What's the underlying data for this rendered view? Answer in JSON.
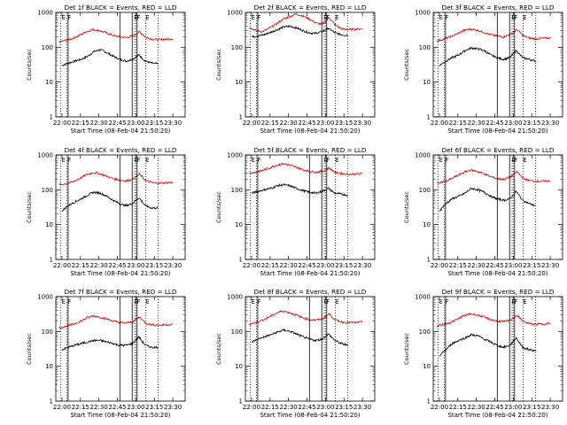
{
  "figure": {
    "ylabel": "Counts/sec",
    "xlabel": "Start Time (08-Feb-04 21:50:20)",
    "event_marks": [
      "E",
      "F",
      "E",
      "F",
      "E"
    ]
  },
  "colors": {
    "events": "#000000",
    "lld": "#e00000",
    "axes": "#000000"
  },
  "chart_data": [
    {
      "type": "line",
      "title": "Det 1f BLACK = Events, RED = LLD",
      "xlabel": "Start Time (08-Feb-04 21:50:20)",
      "ylabel": "Counts/sec",
      "x_ticks": [
        "22:00",
        "22:15",
        "22:30",
        "22:45",
        "23:00",
        "23:15",
        "23:30"
      ],
      "y_ticks": [
        "1",
        "10",
        "100",
        "1000"
      ],
      "ylim": [
        1,
        1000
      ],
      "log_y": true,
      "xlim_minutes": [
        -5,
        100
      ],
      "series": [
        {
          "name": "BLACK = Events",
          "x_start": "22:00",
          "x_end": "23:18",
          "values": [
            30,
            35,
            40,
            45,
            55,
            75,
            85,
            70,
            55,
            45,
            40,
            45,
            60,
            40,
            35,
            33
          ]
        },
        {
          "name": "RED = LLD",
          "x_start": "21:58",
          "x_end": "23:30",
          "values": [
            140,
            160,
            180,
            220,
            280,
            320,
            300,
            260,
            220,
            200,
            190,
            210,
            280,
            190,
            170,
            165,
            170,
            175
          ]
        }
      ],
      "vlines_solid": [
        "22:05",
        "22:47",
        "22:57",
        "23:01"
      ],
      "vlines_dotted": [
        "21:59",
        "22:04",
        "22:59",
        "23:00",
        "23:08",
        "23:18"
      ]
    },
    {
      "type": "line",
      "title": "Det 2f BLACK = Events, RED = LLD",
      "xlabel": "Start Time (08-Feb-04 21:50:20)",
      "ylabel": "Counts/sec",
      "x_ticks": [
        "22:00",
        "22:15",
        "22:30",
        "22:45",
        "23:00",
        "23:15",
        "23:30"
      ],
      "y_ticks": [
        "1",
        "10",
        "100",
        "1000"
      ],
      "ylim": [
        1,
        1000
      ],
      "log_y": true,
      "xlim_minutes": [
        -5,
        100
      ],
      "series": [
        {
          "name": "BLACK = Events",
          "x_start": "22:00",
          "x_end": "23:18",
          "values": [
            200,
            210,
            230,
            270,
            320,
            380,
            400,
            360,
            300,
            260,
            250,
            280,
            350,
            260,
            230,
            220
          ]
        },
        {
          "name": "RED = LLD",
          "x_start": "21:58",
          "x_end": "23:30",
          "values": [
            380,
            300,
            280,
            350,
            450,
            620,
            750,
            900,
            800,
            650,
            500,
            450,
            700,
            420,
            330,
            320,
            330,
            340
          ]
        }
      ],
      "vlines_solid": [
        "22:05",
        "22:57",
        "23:01"
      ],
      "vlines_dotted": [
        "21:59",
        "22:04",
        "22:59",
        "23:00",
        "23:08",
        "23:18"
      ]
    },
    {
      "type": "line",
      "title": "Det 3f BLACK = Events, RED = LLD",
      "xlabel": "Start Time (08-Feb-04 21:50:20)",
      "ylabel": "Counts/sec",
      "x_ticks": [
        "22:00",
        "22:15",
        "22:30",
        "22:45",
        "23:00",
        "23:15",
        "23:30"
      ],
      "y_ticks": [
        "1",
        "10",
        "100",
        "1000"
      ],
      "ylim": [
        1,
        1000
      ],
      "log_y": true,
      "xlim_minutes": [
        -5,
        100
      ],
      "series": [
        {
          "name": "BLACK = Events",
          "x_start": "22:00",
          "x_end": "23:18",
          "values": [
            30,
            40,
            50,
            60,
            80,
            95,
            90,
            80,
            60,
            50,
            45,
            50,
            80,
            50,
            45,
            40
          ]
        },
        {
          "name": "RED = LLD",
          "x_start": "21:58",
          "x_end": "23:30",
          "values": [
            150,
            170,
            200,
            240,
            300,
            330,
            310,
            270,
            230,
            210,
            200,
            230,
            320,
            210,
            180,
            175,
            180,
            185
          ]
        }
      ],
      "vlines_solid": [
        "22:05",
        "22:47",
        "22:57",
        "23:01"
      ],
      "vlines_dotted": [
        "21:59",
        "22:04",
        "22:59",
        "23:00",
        "23:08",
        "23:18"
      ]
    },
    {
      "type": "line",
      "title": "Det 4f BLACK = Events, RED = LLD",
      "xlabel": "Start Time (08-Feb-04 21:50:20)",
      "ylabel": "Counts/sec",
      "x_ticks": [
        "22:00",
        "22:15",
        "22:30",
        "22:45",
        "23:00",
        "23:15",
        "23:30"
      ],
      "y_ticks": [
        "1",
        "10",
        "100",
        "1000"
      ],
      "ylim": [
        1,
        1000
      ],
      "log_y": true,
      "xlim_minutes": [
        -5,
        100
      ],
      "series": [
        {
          "name": "BLACK = Events",
          "x_start": "22:00",
          "x_end": "23:18",
          "values": [
            25,
            35,
            45,
            55,
            70,
            85,
            80,
            65,
            50,
            40,
            35,
            40,
            60,
            35,
            30,
            30
          ]
        },
        {
          "name": "RED = LLD",
          "x_start": "21:58",
          "x_end": "23:30",
          "values": [
            140,
            150,
            170,
            210,
            270,
            310,
            290,
            250,
            210,
            190,
            180,
            200,
            280,
            180,
            160,
            155,
            160,
            165
          ]
        }
      ],
      "vlines_solid": [
        "22:05",
        "22:47",
        "22:57",
        "23:01"
      ],
      "vlines_dotted": [
        "21:59",
        "22:04",
        "22:59",
        "23:00",
        "23:08",
        "23:18"
      ]
    },
    {
      "type": "line",
      "title": "Det 5f BLACK = Events, RED = LLD",
      "xlabel": "Start Time (08-Feb-04 21:50:20)",
      "ylabel": "Counts/sec",
      "x_ticks": [
        "22:00",
        "22:15",
        "22:30",
        "22:45",
        "23:00",
        "23:15",
        "23:30"
      ],
      "y_ticks": [
        "1",
        "10",
        "100",
        "1000"
      ],
      "ylim": [
        1,
        1000
      ],
      "log_y": true,
      "xlim_minutes": [
        -5,
        100
      ],
      "series": [
        {
          "name": "BLACK = Events",
          "x_start": "22:00",
          "x_end": "23:18",
          "values": [
            80,
            90,
            100,
            110,
            130,
            140,
            130,
            110,
            95,
            85,
            80,
            90,
            110,
            80,
            75,
            70
          ]
        },
        {
          "name": "RED = LLD",
          "x_start": "21:58",
          "x_end": "23:30",
          "values": [
            300,
            320,
            360,
            420,
            500,
            560,
            520,
            450,
            380,
            340,
            320,
            340,
            420,
            310,
            290,
            280,
            285,
            290
          ]
        }
      ],
      "vlines_solid": [
        "22:05",
        "22:47",
        "22:57",
        "23:01"
      ],
      "vlines_dotted": [
        "21:59",
        "22:04",
        "22:59",
        "23:00",
        "23:08",
        "23:18"
      ]
    },
    {
      "type": "line",
      "title": "Det 6f BLACK = Events, RED = LLD",
      "xlabel": "Start Time (08-Feb-04 21:50:20)",
      "ylabel": "Counts/sec",
      "x_ticks": [
        "22:00",
        "22:15",
        "22:30",
        "22:45",
        "23:00",
        "23:15",
        "23:30"
      ],
      "y_ticks": [
        "1",
        "10",
        "100",
        "1000"
      ],
      "ylim": [
        1,
        1000
      ],
      "log_y": true,
      "xlim_minutes": [
        -5,
        100
      ],
      "series": [
        {
          "name": "BLACK = Events",
          "x_start": "22:00",
          "x_end": "23:18",
          "values": [
            25,
            40,
            55,
            65,
            80,
            110,
            100,
            85,
            65,
            55,
            50,
            55,
            90,
            50,
            40,
            35
          ]
        },
        {
          "name": "RED = LLD",
          "x_start": "21:58",
          "x_end": "23:30",
          "values": [
            150,
            170,
            200,
            250,
            310,
            370,
            340,
            290,
            240,
            210,
            200,
            230,
            330,
            210,
            180,
            175,
            175,
            180
          ]
        }
      ],
      "vlines_solid": [
        "22:05",
        "22:47",
        "22:57",
        "23:01"
      ],
      "vlines_dotted": [
        "21:59",
        "22:04",
        "22:59",
        "23:00",
        "23:08",
        "23:18"
      ]
    },
    {
      "type": "line",
      "title": "Det 7f BLACK = Events, RED = LLD",
      "xlabel": "Start Time (08-Feb-04 21:50:20)",
      "ylabel": "Counts/sec",
      "x_ticks": [
        "22:00",
        "22:15",
        "22:30",
        "22:45",
        "23:00",
        "23:15",
        "23:30"
      ],
      "y_ticks": [
        "1",
        "10",
        "100",
        "1000"
      ],
      "ylim": [
        1,
        1000
      ],
      "log_y": true,
      "xlim_minutes": [
        -5,
        100
      ],
      "series": [
        {
          "name": "BLACK = Events",
          "x_start": "22:00",
          "x_end": "23:18",
          "values": [
            30,
            35,
            40,
            45,
            50,
            55,
            55,
            50,
            45,
            40,
            40,
            45,
            70,
            40,
            35,
            35
          ]
        },
        {
          "name": "RED = LLD",
          "x_start": "21:58",
          "x_end": "23:30",
          "values": [
            130,
            140,
            160,
            190,
            240,
            280,
            260,
            230,
            200,
            180,
            175,
            190,
            260,
            170,
            155,
            150,
            155,
            160
          ]
        }
      ],
      "vlines_solid": [
        "22:05",
        "22:47",
        "22:57",
        "23:01"
      ],
      "vlines_dotted": [
        "21:59",
        "22:04",
        "22:59",
        "23:00",
        "23:08",
        "23:18"
      ]
    },
    {
      "type": "line",
      "title": "Det 8f BLACK = Events, RED = LLD",
      "xlabel": "Start Time (08-Feb-04 21:50:20)",
      "ylabel": "Counts/sec",
      "x_ticks": [
        "22:00",
        "22:15",
        "22:30",
        "22:45",
        "23:00",
        "23:15",
        "23:30"
      ],
      "y_ticks": [
        "1",
        "10",
        "100",
        "1000"
      ],
      "ylim": [
        1,
        1000
      ],
      "log_y": true,
      "xlim_minutes": [
        -5,
        100
      ],
      "series": [
        {
          "name": "BLACK = Events",
          "x_start": "22:00",
          "x_end": "23:18",
          "values": [
            50,
            60,
            70,
            80,
            95,
            110,
            100,
            85,
            70,
            60,
            55,
            60,
            85,
            55,
            45,
            40
          ]
        },
        {
          "name": "RED = LLD",
          "x_start": "21:58",
          "x_end": "23:30",
          "values": [
            160,
            180,
            210,
            260,
            330,
            390,
            350,
            300,
            250,
            220,
            210,
            230,
            320,
            210,
            185,
            180,
            180,
            185
          ]
        }
      ],
      "vlines_solid": [
        "22:05",
        "22:47",
        "22:57",
        "23:01"
      ],
      "vlines_dotted": [
        "21:59",
        "22:04",
        "22:59",
        "23:00",
        "23:08",
        "23:18"
      ]
    },
    {
      "type": "line",
      "title": "Det 9f BLACK = Events, RED = LLD",
      "xlabel": "Start Time (08-Feb-04 21:50:20)",
      "ylabel": "Counts/sec",
      "x_ticks": [
        "22:00",
        "22:15",
        "22:30",
        "22:45",
        "23:00",
        "23:15",
        "23:30"
      ],
      "y_ticks": [
        "1",
        "10",
        "100",
        "1000"
      ],
      "ylim": [
        1,
        1000
      ],
      "log_y": true,
      "xlim_minutes": [
        -5,
        100
      ],
      "series": [
        {
          "name": "BLACK = Events",
          "x_start": "22:00",
          "x_end": "23:18",
          "values": [
            20,
            30,
            45,
            55,
            65,
            80,
            75,
            60,
            50,
            40,
            35,
            40,
            65,
            35,
            30,
            28
          ]
        },
        {
          "name": "RED = LLD",
          "x_start": "21:58",
          "x_end": "23:30",
          "values": [
            140,
            160,
            180,
            220,
            280,
            320,
            300,
            260,
            220,
            200,
            190,
            210,
            290,
            190,
            165,
            160,
            165,
            170
          ]
        }
      ],
      "vlines_solid": [
        "22:05",
        "22:47",
        "22:57",
        "23:01"
      ],
      "vlines_dotted": [
        "21:59",
        "22:04",
        "22:59",
        "23:00",
        "23:08",
        "23:18"
      ]
    }
  ]
}
